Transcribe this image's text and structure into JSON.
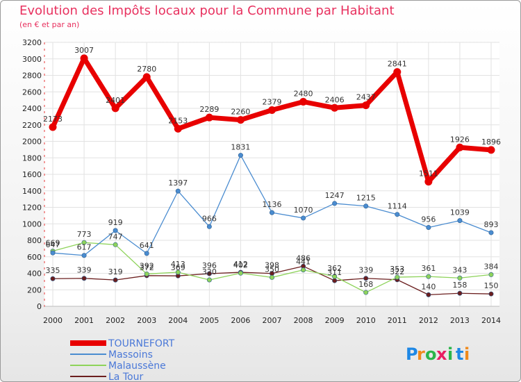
{
  "header": {
    "title": "Evolution des Impôts locaux pour la Commune par Habitant",
    "subtitle": "(en € et par an)"
  },
  "logo": {
    "letters": [
      "P",
      "r",
      "o",
      "x",
      "i",
      "t",
      "i"
    ]
  },
  "colors": {
    "TOURNEFORT": "#e80000",
    "Massoins": "#4a8cd0",
    "Malaussène": "#8ed35a",
    "La Tour": "#6b1e1e",
    "accent": "#e8315f",
    "legend_text": "#4a78d8"
  },
  "chart_data": {
    "type": "line",
    "title": "Evolution des Impôts locaux pour la Commune par Habitant",
    "subtitle": "(en € et par an)",
    "xlabel": "",
    "ylabel": "",
    "x": [
      "2000",
      "2001",
      "2002",
      "2003",
      "2004",
      "2005",
      "2006",
      "2007",
      "2008",
      "2009",
      "2010",
      "2011",
      "2012",
      "2013",
      "2014"
    ],
    "ylim": [
      0,
      3200
    ],
    "yticks": [
      0,
      200,
      400,
      600,
      800,
      1000,
      1200,
      1400,
      1600,
      1800,
      2000,
      2200,
      2400,
      2600,
      2800,
      3000,
      3200
    ],
    "grid": true,
    "legend_position": "bottom-left",
    "series": [
      {
        "name": "TOURNEFORT",
        "values": [
          2173,
          3007,
          2401,
          2780,
          2153,
          2289,
          2260,
          2379,
          2480,
          2406,
          2437,
          2841,
          1511,
          1926,
          1896
        ],
        "labels": [
          "2173",
          "3007",
          "2401",
          "2780",
          "2153",
          "2289",
          "2260",
          "2379",
          "2480",
          "2406",
          "2437",
          "2841",
          "1511",
          "1926",
          "1896"
        ]
      },
      {
        "name": "Massoins",
        "values": [
          647,
          617,
          919,
          641,
          1397,
          966,
          1831,
          1136,
          1070,
          1247,
          1215,
          1114,
          956,
          1039,
          893
        ],
        "labels": [
          "647",
          "617",
          "919",
          "641",
          "1397",
          "966",
          "1831",
          "1136",
          "1070",
          "1247",
          "1215",
          "1114",
          "956",
          "1039",
          "893"
        ]
      },
      {
        "name": "Malaussène",
        "values": [
          669,
          773,
          747,
          392,
          413,
          320,
          402,
          350,
          441,
          362,
          168,
          353,
          361,
          343,
          384
        ],
        "labels": [
          "669",
          "773",
          "747",
          "392",
          "413",
          "320",
          "402",
          "350",
          "441",
          "362",
          "168",
          "353",
          "361",
          "343",
          "384"
        ]
      },
      {
        "name": "La Tour",
        "values": [
          335,
          339,
          319,
          372,
          369,
          396,
          412,
          398,
          486,
          311,
          339,
          322,
          140,
          158,
          150
        ],
        "labels": [
          "335",
          "339",
          "319",
          "372",
          "369",
          "396",
          "412",
          "398",
          "486",
          "311",
          "339",
          "322",
          "140",
          "158",
          "150"
        ]
      }
    ]
  }
}
